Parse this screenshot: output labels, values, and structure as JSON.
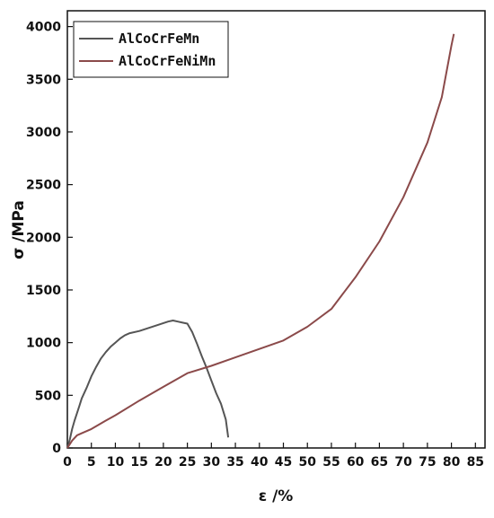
{
  "chart_data": {
    "type": "line",
    "title": "",
    "xlabel": "ε /%",
    "ylabel": "σ /MPa",
    "xlim": [
      0,
      87
    ],
    "ylim": [
      0,
      4150
    ],
    "xticks": [
      0,
      5,
      10,
      15,
      20,
      25,
      30,
      35,
      40,
      45,
      50,
      55,
      60,
      65,
      70,
      75,
      80,
      85
    ],
    "yticks": [
      0,
      500,
      1000,
      1500,
      2000,
      2500,
      3000,
      3500,
      4000
    ],
    "grid": false,
    "legend_position": "top-left",
    "series": [
      {
        "name": "AlCoCrFeMn",
        "color": "#555555",
        "x": [
          0,
          0.5,
          1,
          1.5,
          2,
          2.5,
          3,
          4,
          5,
          6,
          7,
          8,
          9,
          10,
          11,
          12,
          13,
          15,
          17,
          19,
          21,
          22,
          23,
          24,
          25,
          26,
          27,
          28,
          29,
          30,
          31,
          32,
          33,
          33.5
        ],
        "y": [
          0,
          80,
          180,
          260,
          330,
          400,
          470,
          570,
          680,
          770,
          850,
          910,
          960,
          1000,
          1040,
          1070,
          1090,
          1110,
          1140,
          1170,
          1200,
          1210,
          1200,
          1190,
          1180,
          1100,
          990,
          870,
          760,
          640,
          520,
          420,
          270,
          100
        ]
      },
      {
        "name": "AlCoCrFeNiMn",
        "color": "#8b4a4a",
        "x": [
          0,
          1,
          2,
          3,
          5,
          8,
          10,
          15,
          20,
          25,
          30,
          35,
          40,
          45,
          50,
          55,
          60,
          65,
          70,
          75,
          78,
          80,
          80.5
        ],
        "y": [
          0,
          70,
          120,
          140,
          180,
          260,
          310,
          450,
          580,
          710,
          780,
          860,
          940,
          1020,
          1150,
          1320,
          1620,
          1960,
          2380,
          2900,
          3330,
          3820,
          3930
        ]
      }
    ]
  }
}
